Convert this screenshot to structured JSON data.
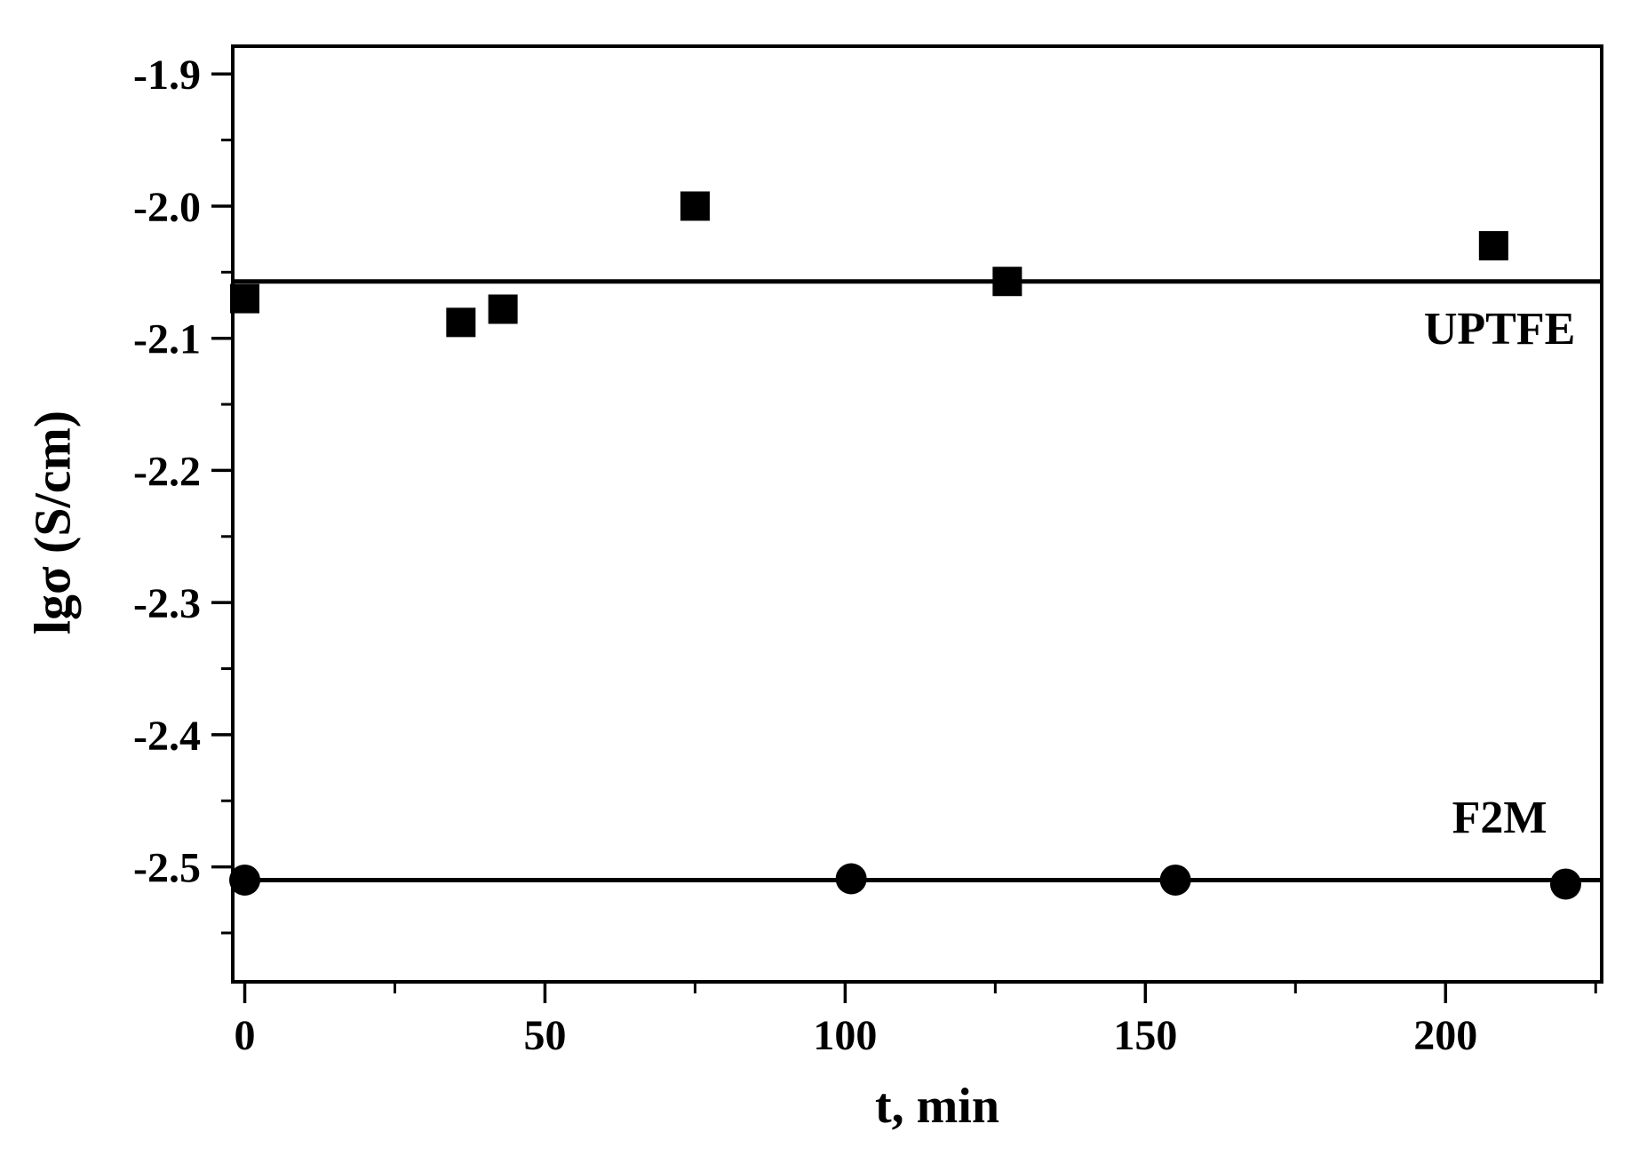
{
  "chart_data": {
    "type": "scatter",
    "title": "",
    "xlabel": "t, min",
    "ylabel": "lgσ (S/cm)",
    "xlim": [
      -2,
      226
    ],
    "ylim": [
      -2.587,
      -1.879
    ],
    "x_ticks": [
      0,
      50,
      100,
      150,
      200
    ],
    "x_minor_ticks": [
      25,
      75,
      125,
      175,
      225
    ],
    "y_ticks": [
      -1.9,
      -2.0,
      -2.1,
      -2.2,
      -2.3,
      -2.4,
      -2.5
    ],
    "y_minor_ticks": [
      -1.95,
      -2.05,
      -2.15,
      -2.25,
      -2.35,
      -2.45,
      -2.55
    ],
    "grid": false,
    "legend_position": "inline-labels",
    "colors": {
      "foreground": "#000000",
      "background": "#ffffff"
    },
    "series": [
      {
        "name": "UPTFE",
        "marker": "square",
        "marker_size": 33,
        "fit_line_y": -2.057,
        "points": [
          [
            0,
            -2.07
          ],
          [
            36,
            -2.088
          ],
          [
            43,
            -2.078
          ],
          [
            75,
            -2.0
          ],
          [
            127,
            -2.057
          ],
          [
            208,
            -2.03
          ]
        ],
        "label": {
          "text": "UPTFE",
          "x": 209,
          "y": -2.092
        }
      },
      {
        "name": "F2M",
        "marker": "circle",
        "marker_size": 35,
        "fit_line_y": -2.51,
        "points": [
          [
            0,
            -2.51
          ],
          [
            101,
            -2.509
          ],
          [
            155,
            -2.51
          ],
          [
            220,
            -2.513
          ]
        ],
        "label": {
          "text": "F2M",
          "x": 209,
          "y": -2.462
        }
      }
    ]
  }
}
